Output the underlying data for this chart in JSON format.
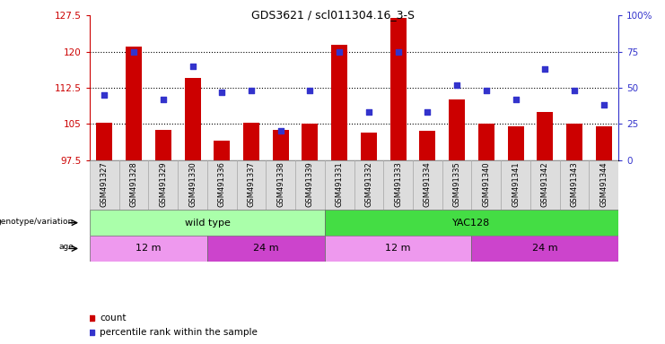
{
  "title": "GDS3621 / scl011304.16_3-S",
  "samples": [
    "GSM491327",
    "GSM491328",
    "GSM491329",
    "GSM491330",
    "GSM491336",
    "GSM491337",
    "GSM491338",
    "GSM491339",
    "GSM491331",
    "GSM491332",
    "GSM491333",
    "GSM491334",
    "GSM491335",
    "GSM491340",
    "GSM491341",
    "GSM491342",
    "GSM491343",
    "GSM491344"
  ],
  "count_values": [
    105.2,
    121.0,
    103.8,
    114.5,
    101.5,
    105.2,
    103.8,
    105.1,
    121.5,
    103.2,
    127.0,
    103.5,
    110.0,
    105.0,
    104.5,
    107.5,
    105.0,
    104.5
  ],
  "percentile_values": [
    45,
    75,
    42,
    65,
    47,
    48,
    20,
    48,
    75,
    33,
    75,
    33,
    52,
    48,
    42,
    63,
    48,
    38
  ],
  "ylim_left": [
    97.5,
    127.5
  ],
  "ylim_right": [
    0,
    100
  ],
  "yticks_left": [
    97.5,
    105.0,
    112.5,
    120.0,
    127.5
  ],
  "yticks_right": [
    0,
    25,
    50,
    75,
    100
  ],
  "ytick_labels_left": [
    "97.5",
    "105",
    "112.5",
    "120",
    "127.5"
  ],
  "ytick_labels_right": [
    "0",
    "25",
    "50",
    "75",
    "100%"
  ],
  "hlines": [
    105.0,
    112.5,
    120.0
  ],
  "bar_color": "#cc0000",
  "dot_color": "#3333cc",
  "bar_width": 0.55,
  "genotype_groups": [
    {
      "label": "wild type",
      "start": 0,
      "end": 8,
      "color": "#aaffaa"
    },
    {
      "label": "YAC128",
      "start": 8,
      "end": 18,
      "color": "#44dd44"
    }
  ],
  "age_groups": [
    {
      "label": "12 m",
      "start": 0,
      "end": 4,
      "color": "#ee99ee"
    },
    {
      "label": "24 m",
      "start": 4,
      "end": 8,
      "color": "#cc44cc"
    },
    {
      "label": "12 m",
      "start": 8,
      "end": 13,
      "color": "#ee99ee"
    },
    {
      "label": "24 m",
      "start": 13,
      "end": 18,
      "color": "#cc44cc"
    }
  ],
  "legend_items": [
    {
      "label": "count",
      "color": "#cc0000"
    },
    {
      "label": "percentile rank within the sample",
      "color": "#3333cc"
    }
  ],
  "axis_left_color": "#cc0000",
  "axis_right_color": "#3333cc"
}
